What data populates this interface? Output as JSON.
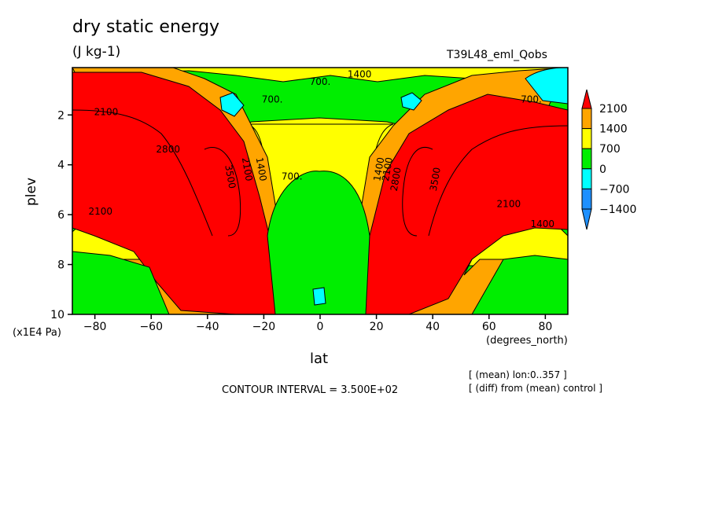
{
  "title": "dry static energy",
  "units": "(J kg-1)",
  "run_name": "T39L48_eml_Qobs",
  "notes": [
    "[ (mean) lon:0..357 ]",
    "[ (diff) from (mean) control ]"
  ],
  "contour_interval_text": "CONTOUR INTERVAL = 3.500E+02",
  "chart_data": {
    "type": "heatmap",
    "title": "dry static energy",
    "subtitle": "(J kg-1)",
    "xlabel": "lat",
    "x_unit": "(degrees_north)",
    "ylabel": "plev",
    "y_unit": "(x1E4 Pa)",
    "xlim": [
      -88,
      88
    ],
    "ylim": [
      10,
      0.1
    ],
    "x_ticks": [
      -80,
      -60,
      -40,
      -20,
      0,
      20,
      40,
      60,
      80
    ],
    "x_tick_labels": [
      "−80",
      "−60",
      "−40",
      "−20",
      "0",
      "20",
      "40",
      "60",
      "80"
    ],
    "y_ticks": [
      2,
      4,
      6,
      8,
      10
    ],
    "y_tick_labels": [
      "2",
      "4",
      "6",
      "8",
      "10"
    ],
    "contour_interval": 350,
    "colorbar": {
      "levels": [
        -1400,
        -700,
        0,
        700,
        1400,
        2100
      ],
      "labels": [
        "−1400",
        "−700",
        "0",
        "700",
        "1400",
        "2100"
      ],
      "colors": [
        "#1e90ff",
        "#00ffff",
        "#00ee00",
        "#ffff00",
        "#ffa500",
        "#ff0000"
      ],
      "extends": "both"
    },
    "contour_labels": [
      {
        "text": "700.",
        "lat": -17,
        "plev": 1.5
      },
      {
        "text": "700.",
        "lat": 0,
        "plev": 0.8
      },
      {
        "text": "1400",
        "lat": 14,
        "plev": 0.5
      },
      {
        "text": "700.",
        "lat": 75,
        "plev": 1.5
      },
      {
        "text": "2100",
        "lat": -76,
        "plev": 2.0
      },
      {
        "text": "2800",
        "lat": -54,
        "plev": 3.5
      },
      {
        "text": "3500",
        "lat": -33,
        "plev": 4.5
      },
      {
        "text": "2100",
        "lat": -27,
        "plev": 4.2
      },
      {
        "text": "1400",
        "lat": -22,
        "plev": 4.2
      },
      {
        "text": "700.",
        "lat": -10,
        "plev": 4.6
      },
      {
        "text": "1400",
        "lat": 22,
        "plev": 4.2
      },
      {
        "text": "2100",
        "lat": 25,
        "plev": 4.2
      },
      {
        "text": "2800",
        "lat": 28,
        "plev": 4.6
      },
      {
        "text": "3500",
        "lat": 42,
        "plev": 4.6
      },
      {
        "text": "2100",
        "lat": -78,
        "plev": 6.0
      },
      {
        "text": "2100",
        "lat": 67,
        "plev": 5.7
      },
      {
        "text": "1400",
        "lat": 79,
        "plev": 6.5
      }
    ]
  }
}
